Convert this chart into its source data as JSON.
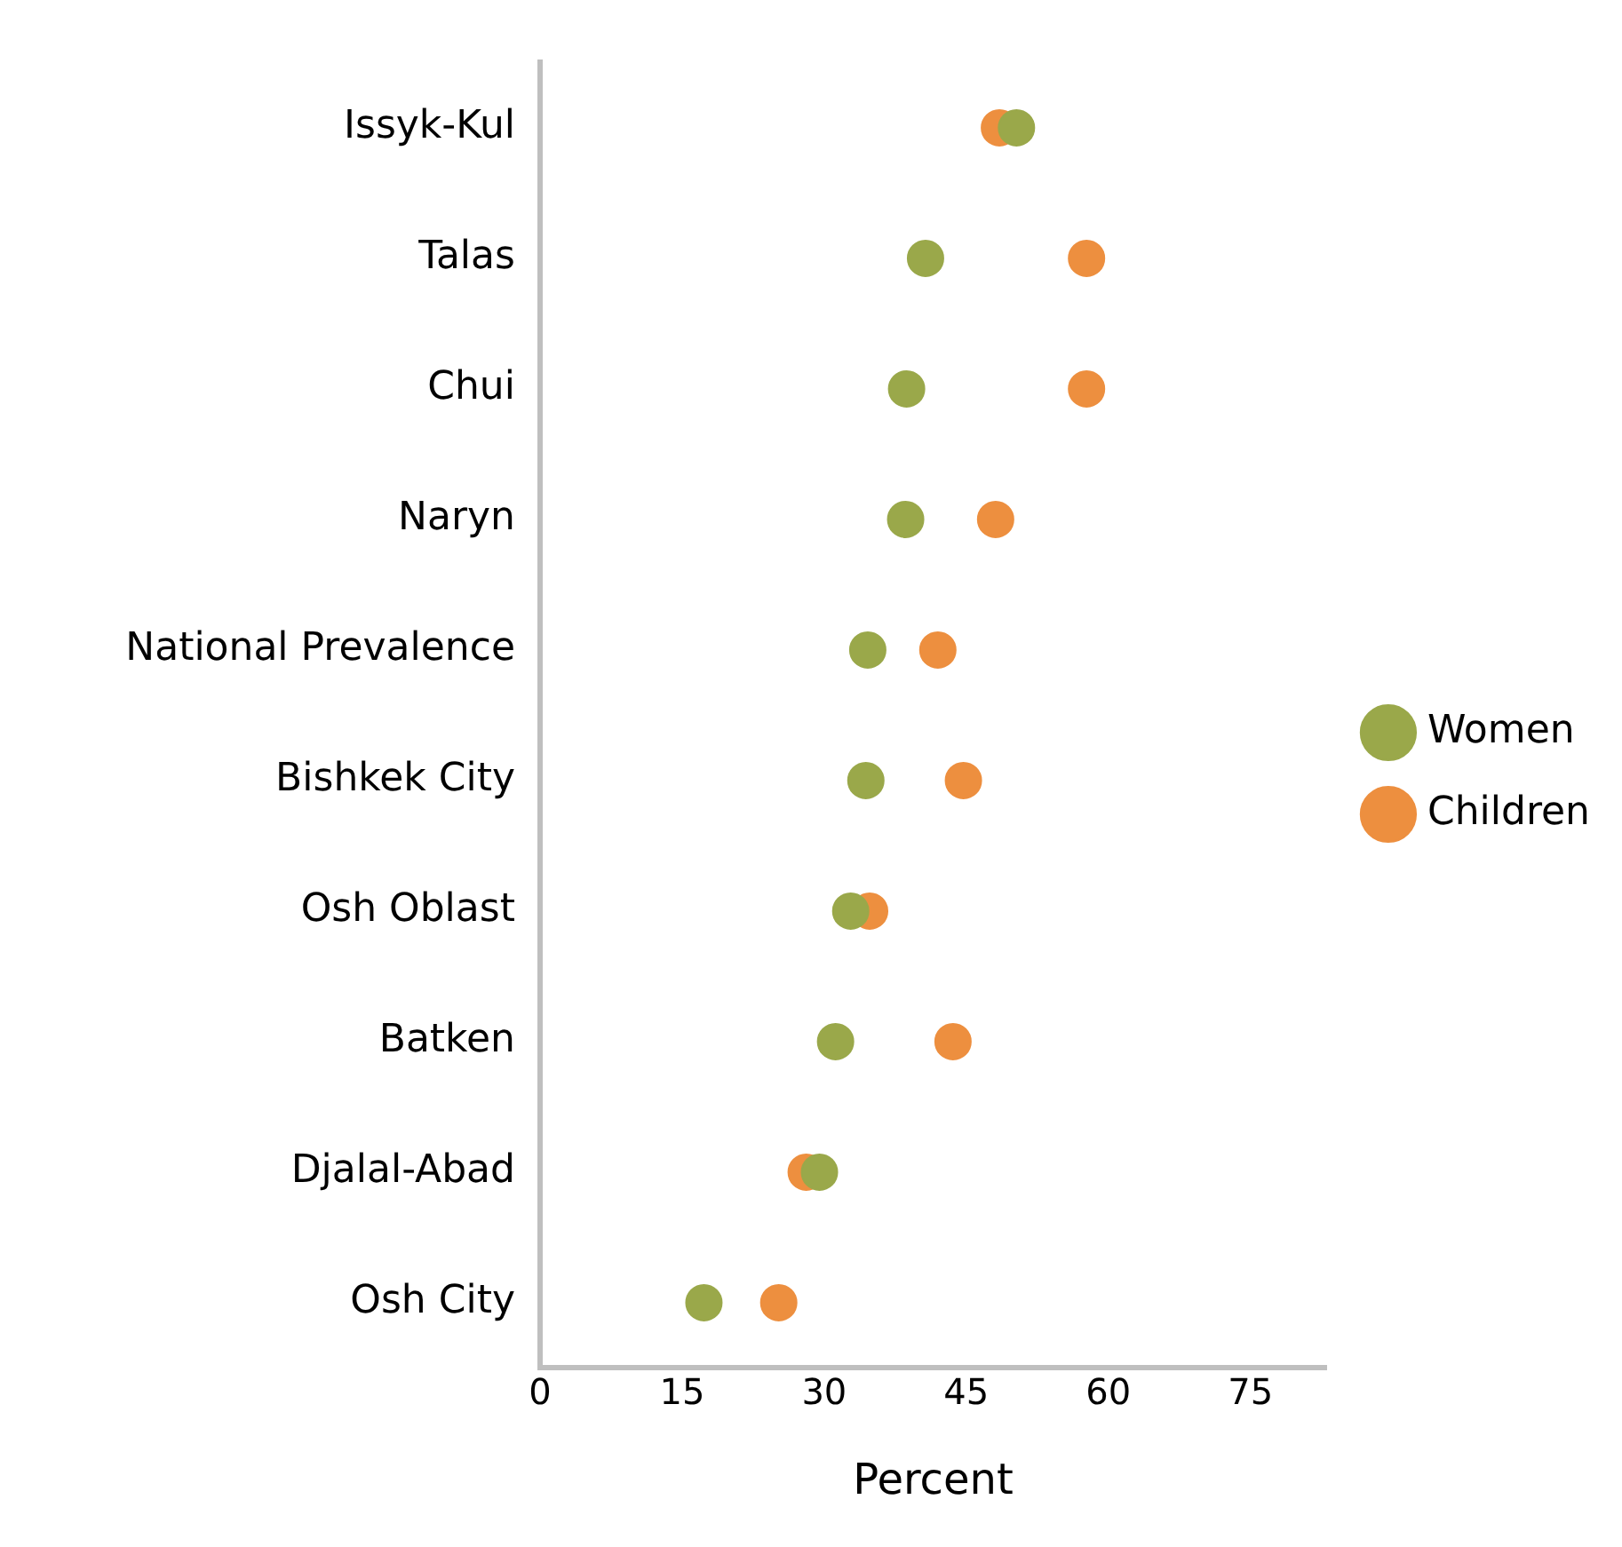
{
  "chart_data": {
    "type": "scatter",
    "xlabel": "Percent",
    "categories": [
      "Issyk-Kul",
      "Talas",
      "Chui",
      "Naryn",
      "National Prevalence",
      "Bishkek City",
      "Osh Oblast",
      "Batken",
      "Djalal-Abad",
      "Osh City"
    ],
    "series": [
      {
        "name": "Women",
        "color": "#9aa84a",
        "values": [
          50.3,
          40.7,
          38.7,
          38.6,
          34.6,
          34.4,
          32.8,
          31.2,
          29.5,
          17.3
        ]
      },
      {
        "name": "Children",
        "color": "#ed8f3f",
        "values": [
          48.5,
          57.7,
          57.7,
          48.1,
          42.0,
          44.7,
          34.8,
          43.6,
          28.1,
          25.2
        ]
      }
    ],
    "xlim": [
      0,
      83
    ],
    "xticks": [
      0,
      15,
      30,
      45,
      60,
      75
    ],
    "orientation": "horizontal",
    "grid": false,
    "legend": "right",
    "marker": "circle"
  }
}
